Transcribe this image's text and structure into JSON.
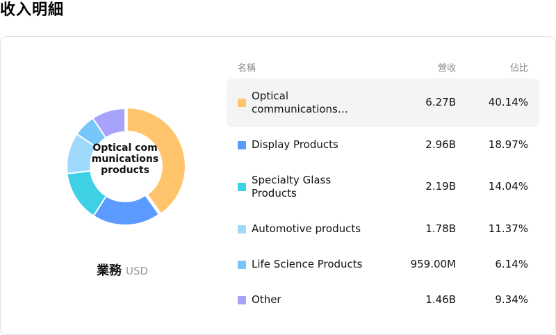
{
  "page": {
    "title": "收入明細"
  },
  "chart_data": {
    "type": "pie",
    "center_label": "Optical communications products",
    "caption": {
      "label": "業務",
      "unit": "USD"
    },
    "columns": {
      "name": "名稱",
      "revenue": "營收",
      "share": "佔比"
    },
    "rows": [
      {
        "name": "Optical communications…",
        "full_name": "Optical communications products",
        "revenue": "6.27B",
        "share": "40.14%",
        "value": 40.14,
        "color": "#FFC46C",
        "highlighted": true
      },
      {
        "name": "Display Products",
        "revenue": "2.96B",
        "share": "18.97%",
        "value": 18.97,
        "color": "#5B9BFF",
        "highlighted": false
      },
      {
        "name": "Specialty Glass Products",
        "revenue": "2.19B",
        "share": "14.04%",
        "value": 14.04,
        "color": "#3ED1E6",
        "highlighted": false
      },
      {
        "name": "Automotive products",
        "revenue": "1.78B",
        "share": "11.37%",
        "value": 11.37,
        "color": "#9ED9FB",
        "highlighted": false
      },
      {
        "name": "Life Science Products",
        "revenue": "959.00M",
        "share": "6.14%",
        "value": 6.14,
        "color": "#76C6FA",
        "highlighted": false
      },
      {
        "name": "Other",
        "revenue": "1.46B",
        "share": "9.34%",
        "value": 9.34,
        "color": "#A7A3FA",
        "highlighted": false
      }
    ]
  }
}
